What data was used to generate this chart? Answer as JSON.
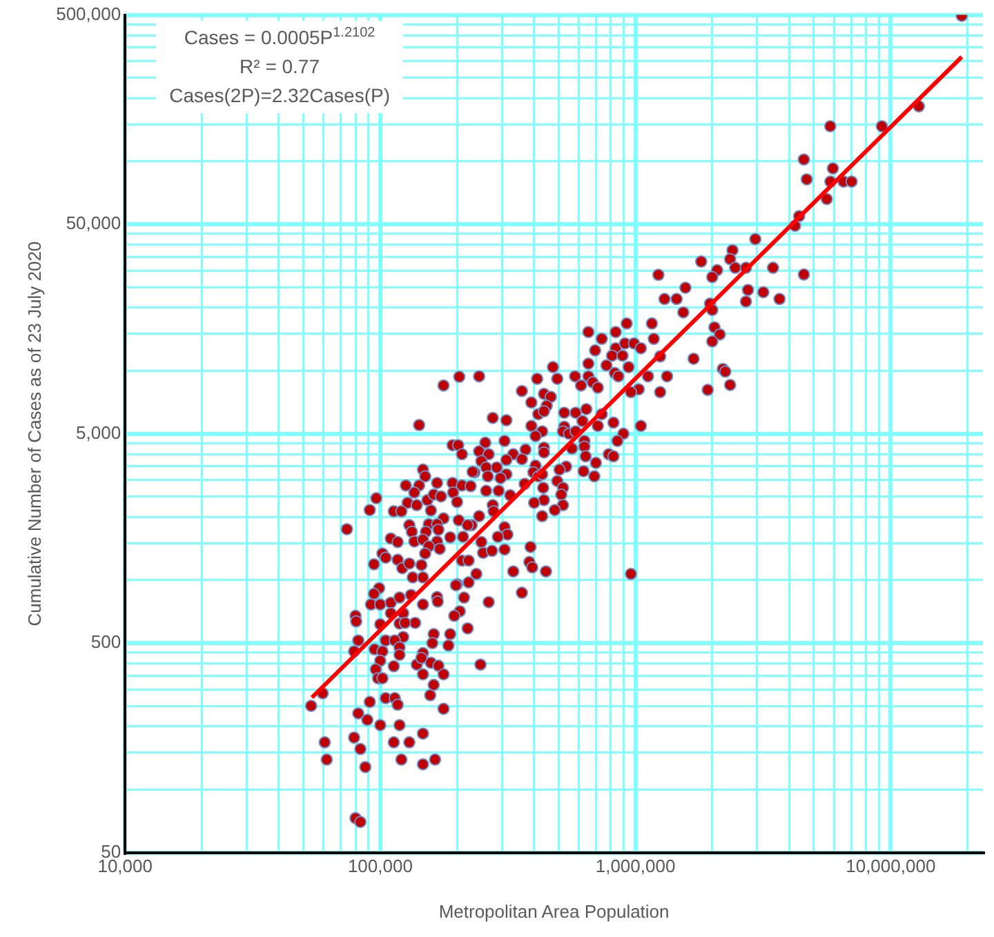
{
  "chart_data": {
    "type": "scatter",
    "xlabel": "Metropolitan Area Population",
    "ylabel": "Cumulative Number of Cases as of 23 July 2020",
    "log": "xy",
    "grid": true,
    "legend": false,
    "marker": "circle",
    "xlim": [
      10000,
      23000000
    ],
    "ylim": [
      50,
      500000
    ],
    "xticks": [
      {
        "value": 10000,
        "label": "10,000"
      },
      {
        "value": 20000,
        "label": null
      },
      {
        "value": 30000,
        "label": null
      },
      {
        "value": 40000,
        "label": null
      },
      {
        "value": 50000,
        "label": null
      },
      {
        "value": 60000,
        "label": null
      },
      {
        "value": 70000,
        "label": null
      },
      {
        "value": 80000,
        "label": null
      },
      {
        "value": 90000,
        "label": null
      },
      {
        "value": 100000,
        "label": "100,000"
      },
      {
        "value": 200000,
        "label": null
      },
      {
        "value": 300000,
        "label": null
      },
      {
        "value": 400000,
        "label": null
      },
      {
        "value": 500000,
        "label": null
      },
      {
        "value": 600000,
        "label": null
      },
      {
        "value": 700000,
        "label": null
      },
      {
        "value": 800000,
        "label": null
      },
      {
        "value": 900000,
        "label": null
      },
      {
        "value": 1000000,
        "label": "1,000,000"
      },
      {
        "value": 2000000,
        "label": null
      },
      {
        "value": 3000000,
        "label": null
      },
      {
        "value": 4000000,
        "label": null
      },
      {
        "value": 5000000,
        "label": null
      },
      {
        "value": 6000000,
        "label": null
      },
      {
        "value": 7000000,
        "label": null
      },
      {
        "value": 8000000,
        "label": null
      },
      {
        "value": 9000000,
        "label": null
      },
      {
        "value": 10000000,
        "label": "10,000,000"
      },
      {
        "value": 20000000,
        "label": null
      }
    ],
    "yticks": [
      50,
      {
        "value": 100,
        "label": null
      },
      {
        "value": 150,
        "label": null
      },
      {
        "value": 200,
        "label": null
      },
      {
        "value": 250,
        "label": null
      },
      {
        "value": 300,
        "label": null
      },
      {
        "value": 350,
        "label": null
      },
      {
        "value": 400,
        "label": null
      },
      {
        "value": 450,
        "label": null
      },
      500,
      {
        "value": 1000,
        "label": null
      },
      {
        "value": 1500,
        "label": null
      },
      {
        "value": 2000,
        "label": null
      },
      {
        "value": 2500,
        "label": null
      },
      {
        "value": 3000,
        "label": null
      },
      {
        "value": 3500,
        "label": null
      },
      {
        "value": 4000,
        "label": null
      },
      {
        "value": 4500,
        "label": null
      },
      {
        "value": 5000,
        "label": "5,000"
      },
      {
        "value": 10000,
        "label": null
      },
      {
        "value": 15000,
        "label": null
      },
      {
        "value": 20000,
        "label": null
      },
      {
        "value": 25000,
        "label": null
      },
      {
        "value": 30000,
        "label": null
      },
      {
        "value": 35000,
        "label": null
      },
      {
        "value": 40000,
        "label": null
      },
      {
        "value": 45000,
        "label": null
      },
      {
        "value": 50000,
        "label": "50,000"
      },
      {
        "value": 100000,
        "label": null
      },
      {
        "value": 150000,
        "label": null
      },
      {
        "value": 200000,
        "label": null
      },
      {
        "value": 250000,
        "label": null
      },
      {
        "value": 300000,
        "label": null
      },
      {
        "value": 350000,
        "label": null
      },
      {
        "value": 400000,
        "label": null
      },
      {
        "value": 450000,
        "label": null
      },
      {
        "value": 500000,
        "label": "500,000"
      }
    ],
    "annotations": [
      "Cases = 0.0005P$^{1.2102}$",
      "R² = 0.77",
      "Cases(2P)=2.32Cases(P)"
    ],
    "series": [
      {
        "color": "#c00000",
        "x": [
          19000000,
          5800000,
          9240000,
          12900000,
          4570000,
          5940000,
          4690000,
          5810000,
          6540000,
          7030000,
          5620000,
          4380000,
          4220000,
          2950000,
          2400000,
          2350000,
          1810000,
          2460000,
          2090000,
          2000000,
          2710000,
          3460000,
          4570000,
          1230000,
          1570000,
          1300000,
          1450000,
          2760000,
          3170000,
          2710000,
          3670000,
          1540000,
          1960000,
          2000000,
          1160000,
          1180000,
          2040000,
          2140000,
          2000000,
          1250000,
          1690000,
          2200000,
          2250000,
          2350000,
          1120000,
          1330000,
          1250000,
          1920000,
          244000,
          654000,
          738000,
          837000,
          924000,
          695000,
          837000,
          910000,
          987000,
          1050000,
          810000,
          890000,
          654000,
          770000,
          830000,
          940000,
          475000,
          412000,
          494000,
          580000,
          654000,
          612000,
          680000,
          712000,
          857000,
          1030000,
          960000,
          359000,
          438000,
          466000,
          391000,
          449000,
          276000,
          312000,
          416000,
          438000,
          526000,
          583000,
          642000,
          738000,
          620000,
          712000,
          820000,
          1050000,
          391000,
          431000,
          526000,
          520000,
          549000,
          583000,
          406000,
          897000,
          850000,
          631000,
          631000,
          564000,
          258000,
          307000,
          371000,
          438000,
          438000,
          332000,
          244000,
          266000,
          312000,
          359000,
          786000,
          820000,
          638000,
          700000,
          406000,
          535000,
          504000,
          626000,
          690000,
          249000,
          260000,
          286000,
          312000,
          296000,
          398000,
          416000,
          431000,
          234000,
          264000,
          494000,
          520000,
          368000,
          260000,
          291000,
          323000,
          435000,
          512000,
          438000,
          401000,
          520000,
          483000,
          431000,
          276000,
          278000,
          244000,
          307000,
          315000,
          289000,
          228000,
          249000,
          253000,
          274000,
          307000,
          388000,
          384000,
          394000,
          332000,
          446000,
          359000,
          960000,
          238000,
          266000,
          204000,
          177000,
          142000,
          192000,
          202000,
          209000,
          147000,
          150000,
          126000,
          142000,
          167000,
          192000,
          209000,
          230000,
          226000,
          136000,
          153000,
          162000,
          173000,
          193000,
          200000,
          96500,
          91000,
          128000,
          139000,
          113000,
          121000,
          158000,
          177000,
          203000,
          130000,
          155000,
          167000,
          220000,
          133000,
          151000,
          169000,
          188000,
          211000,
          74000,
          110000,
          117000,
          136000,
          147000,
          167000,
          155000,
          171000,
          102000,
          105000,
          117000,
          94500,
          122000,
          130000,
          145000,
          150000,
          209000,
          222000,
          134000,
          147000,
          200000,
          222000,
          99000,
          94500,
          92000,
          100000,
          110000,
          119000,
          132000,
          147000,
          167000,
          168000,
          198000,
          213000,
          205000,
          195000,
          80000,
          80500,
          100000,
          110000,
          123000,
          119000,
          137000,
          125000,
          123000,
          105000,
          114000,
          82000,
          79000,
          95000,
          102000,
          119000,
          119000,
          100000,
          113000,
          96000,
          98000,
          102000,
          139000,
          147000,
          145000,
          158000,
          169000,
          147000,
          162000,
          160000,
          188000,
          185000,
          220000,
          177000,
          162000,
          157000,
          177000,
          59500,
          53600,
          91000,
          105000,
          114000,
          117000,
          82000,
          89000,
          100000,
          119000,
          79000,
          83600,
          113000,
          130000,
          147000,
          60600,
          61700,
          87400,
          121000,
          147000,
          164000,
          80000,
          83600,
          247000
        ],
        "values": [
          495000,
          147000,
          147000,
          183000,
          102000,
          92500,
          82000,
          80000,
          80000,
          80000,
          66000,
          54700,
          49200,
          42500,
          37600,
          34100,
          33200,
          31000,
          30200,
          28000,
          31000,
          31000,
          28800,
          28700,
          24900,
          22000,
          22000,
          24300,
          23700,
          21400,
          22000,
          19000,
          20900,
          19500,
          16800,
          14200,
          16100,
          14900,
          13800,
          11700,
          11400,
          10200,
          9900,
          8550,
          9400,
          9400,
          7900,
          8100,
          9400,
          15300,
          14200,
          15300,
          16800,
          12500,
          12800,
          13500,
          13500,
          12800,
          11800,
          11800,
          10800,
          10600,
          9750,
          10400,
          10400,
          9150,
          9150,
          9400,
          9400,
          8500,
          8800,
          8300,
          9400,
          8150,
          7900,
          8000,
          7750,
          7500,
          7050,
          6800,
          5950,
          5800,
          6200,
          6400,
          6300,
          6300,
          6550,
          6200,
          5750,
          5450,
          5650,
          5450,
          5450,
          5130,
          5400,
          5130,
          5000,
          5130,
          4870,
          5000,
          4620,
          4620,
          4340,
          4250,
          4530,
          4620,
          4200,
          4290,
          4070,
          3990,
          4120,
          3990,
          3750,
          3780,
          3990,
          3900,
          3900,
          3630,
          3520,
          3480,
          3370,
          3310,
          3130,
          3700,
          3450,
          3450,
          3200,
          3070,
          3270,
          3130,
          3200,
          3270,
          3130,
          2970,
          2760,
          2880,
          2670,
          2670,
          2540,
          2760,
          2560,
          2410,
          2340,
          2280,
          2160,
          2020,
          2280,
          2130,
          2020,
          1790,
          1650,
          1610,
          1830,
          1520,
          1350,
          1380,
          1400,
          1440,
          1220,
          1150,
          1100,
          1100,
          870,
          1070,
          1070,
          785,
          9350,
          8500,
          5500,
          4410,
          4410,
          3990,
          3370,
          3130,
          2830,
          2830,
          2910,
          2910,
          2830,
          3290,
          2810,
          2620,
          2410,
          2560,
          2510,
          2620,
          2360,
          2460,
          2160,
          2340,
          2280,
          2130,
          2130,
          2150,
          1970,
          1930,
          1830,
          1850,
          1850,
          1830,
          1700,
          1700,
          1740,
          1600,
          1610,
          1750,
          1580,
          1520,
          1530,
          1560,
          1530,
          1450,
          1410,
          1340,
          1280,
          1250,
          1190,
          1140,
          1200,
          1180,
          1340,
          1240,
          1240,
          1030,
          1030,
          955,
          975,
          915,
          860,
          765,
          765,
          780,
          825,
          850,
          765,
          830,
          790,
          945,
          825,
          710,
          675,
          675,
          635,
          615,
          695,
          695,
          620,
          625,
          625,
          535,
          515,
          515,
          515,
          457,
          467,
          457,
          477,
          440,
          412,
          388,
          375,
          340,
          340,
          395,
          448,
          425,
          403,
          390,
          355,
          552,
          500,
          552,
          487,
          588,
          355,
          316,
          282,
          243,
          288,
          251,
          262,
          273,
          273,
          254,
          231,
          215,
          203,
          203,
          177,
          156,
          168,
          168,
          185,
          168,
          139,
          128,
          139,
          132,
          139,
          73,
          70,
          395
        ]
      },
      {
        "type": "line",
        "color": "#ff0000",
        "marker": "none",
        "x": [
          54000,
          19000000
        ],
        "values": [
          275,
          315000
        ]
      }
    ]
  }
}
